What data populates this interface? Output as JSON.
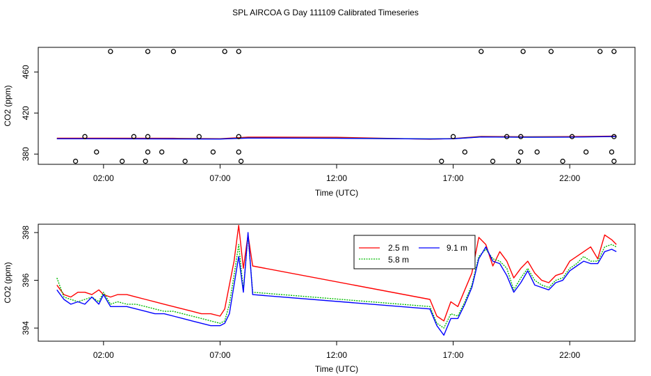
{
  "title": "SPL AIRCOA G  Day 111109  Calibrated Timeseries",
  "chart_data": [
    {
      "type": "line",
      "xlabel": "Time (UTC)",
      "ylabel": "CO2 (ppm)",
      "xlim": [
        -0.8,
        24.8
      ],
      "ylim": [
        370,
        484
      ],
      "xticks": [
        2,
        7,
        12,
        17,
        22
      ],
      "xtick_labels": [
        "02:00",
        "07:00",
        "12:00",
        "17:00",
        "22:00"
      ],
      "yticks": [
        380,
        420,
        460
      ],
      "ytick_labels": [
        "380",
        "420",
        "460"
      ],
      "series": [
        {
          "name": "2.5 m",
          "color": "#ff0000",
          "x": [
            0,
            2,
            5,
            7,
            8.2,
            12,
            16,
            17,
            18.2,
            20,
            22,
            24
          ],
          "y": [
            395.5,
            395.5,
            395.4,
            395,
            396.5,
            396.3,
            394.5,
            395.2,
            397.2,
            396.8,
            397,
            397.5
          ]
        },
        {
          "name": "5.8 m",
          "color": "#00a000",
          "x": [
            0,
            2,
            5,
            7,
            8.2,
            12,
            16,
            17,
            18.2,
            20,
            22,
            24
          ],
          "y": [
            395,
            395,
            394.9,
            394.7,
            395.7,
            395.5,
            394.8,
            395,
            396.8,
            396.5,
            396.6,
            397.2
          ]
        },
        {
          "name": "9.1 m",
          "color": "#0000ff",
          "x": [
            0,
            2,
            5,
            7,
            8.2,
            12,
            16,
            17,
            18.2,
            20,
            22,
            24
          ],
          "y": [
            394.9,
            394.9,
            394.8,
            394.6,
            395.6,
            395.4,
            394.7,
            394.9,
            396.7,
            396.4,
            396.5,
            397.1
          ]
        }
      ],
      "markers": {
        "x": [
          0.8,
          1.2,
          1.7,
          2.3,
          2.8,
          3.3,
          3.8,
          3.9,
          3.9,
          3.9,
          4.5,
          5,
          5.5,
          6.1,
          6.7,
          7.2,
          7.8,
          7.8,
          7.8,
          7.9,
          16.5,
          17,
          17.5,
          18.2,
          18.7,
          19.3,
          19.8,
          19.9,
          19.9,
          20,
          20.6,
          21.2,
          21.7,
          22.1,
          22.7,
          23.3,
          23.8,
          23.9,
          23.9,
          23.9
        ],
        "y": [
          373,
          397,
          382,
          480,
          373,
          397,
          373,
          397,
          382,
          480,
          382,
          480,
          373,
          397,
          382,
          480,
          382,
          397,
          480,
          373,
          373,
          397,
          382,
          480,
          373,
          397,
          373,
          397,
          382,
          480,
          382,
          480,
          373,
          397,
          382,
          480,
          382,
          397,
          480,
          373
        ]
      }
    },
    {
      "type": "line",
      "xlabel": "Time (UTC)",
      "ylabel": "CO2 (ppm)",
      "xlim": [
        -0.8,
        24.8
      ],
      "ylim": [
        393.45,
        398.35
      ],
      "xticks": [
        2,
        7,
        12,
        17,
        22
      ],
      "xtick_labels": [
        "02:00",
        "07:00",
        "12:00",
        "17:00",
        "22:00"
      ],
      "yticks": [
        394,
        396,
        398
      ],
      "ytick_labels": [
        "394",
        "396",
        "398"
      ],
      "legend_position": "top-right",
      "series": [
        {
          "name": "2.5 m",
          "color": "#ff0000",
          "x": [
            0,
            0.3,
            0.6,
            0.9,
            1.2,
            1.5,
            1.8,
            2,
            2.3,
            2.6,
            3,
            3.4,
            3.8,
            4.2,
            4.6,
            5,
            5.4,
            5.8,
            6.2,
            6.6,
            7,
            7.2,
            7.4,
            7.6,
            7.8,
            8,
            8.2,
            8.4,
            16,
            16.3,
            16.6,
            16.9,
            17.2,
            17.5,
            17.8,
            18.1,
            18.4,
            18.7,
            19,
            19.3,
            19.6,
            19.9,
            20.2,
            20.5,
            20.8,
            21.1,
            21.4,
            21.7,
            22,
            22.3,
            22.6,
            22.9,
            23.2,
            23.5,
            23.8,
            24
          ],
          "y": [
            395.8,
            395.4,
            395.3,
            395.5,
            395.5,
            395.4,
            395.6,
            395.4,
            395.3,
            395.4,
            395.4,
            395.3,
            395.2,
            395.1,
            395,
            394.9,
            394.8,
            394.7,
            394.6,
            394.6,
            394.5,
            394.8,
            395.8,
            396.8,
            398.3,
            396.5,
            397.9,
            396.6,
            395.2,
            394.5,
            394.3,
            395.1,
            394.9,
            395.6,
            396.3,
            397.8,
            397.5,
            396.6,
            397.2,
            396.8,
            396.1,
            396.5,
            396.8,
            396.3,
            396.0,
            395.9,
            396.2,
            396.3,
            396.8,
            397.0,
            397.2,
            397.4,
            396.9,
            397.9,
            397.7,
            397.5
          ]
        },
        {
          "name": "5.8 m",
          "color": "#00bb00",
          "x": [
            0,
            0.3,
            0.6,
            0.9,
            1.2,
            1.5,
            1.8,
            2,
            2.3,
            2.6,
            3,
            3.4,
            3.8,
            4.2,
            4.6,
            5,
            5.4,
            5.8,
            6.2,
            6.6,
            7,
            7.2,
            7.4,
            7.6,
            7.8,
            8,
            8.2,
            8.4,
            16,
            16.3,
            16.6,
            16.9,
            17.2,
            17.5,
            17.8,
            18.1,
            18.4,
            18.7,
            19,
            19.3,
            19.6,
            19.9,
            20.2,
            20.5,
            20.8,
            21.1,
            21.4,
            21.7,
            22,
            22.3,
            22.6,
            22.9,
            23.2,
            23.5,
            23.8,
            24
          ],
          "y": [
            396.1,
            395.3,
            395.2,
            395.1,
            395.2,
            395.3,
            395.1,
            395.5,
            395.0,
            395.1,
            395.0,
            395.0,
            394.9,
            394.8,
            394.7,
            394.7,
            394.6,
            394.5,
            394.4,
            394.3,
            394.2,
            394.3,
            395.0,
            396.2,
            397.5,
            395.6,
            397.9,
            395.5,
            394.9,
            394.2,
            394.0,
            394.6,
            394.5,
            395.1,
            395.8,
            397.0,
            397.3,
            396.9,
            396.8,
            396.5,
            395.6,
            396.1,
            396.5,
            396.0,
            395.8,
            395.7,
            396.0,
            396.1,
            396.5,
            396.7,
            397.0,
            396.8,
            396.8,
            397.4,
            397.5,
            397.4
          ]
        },
        {
          "name": "9.1 m",
          "color": "#0000ff",
          "x": [
            0,
            0.3,
            0.6,
            0.9,
            1.2,
            1.5,
            1.8,
            2,
            2.3,
            2.6,
            3,
            3.4,
            3.8,
            4.2,
            4.6,
            5,
            5.4,
            5.8,
            6.2,
            6.6,
            7,
            7.2,
            7.4,
            7.6,
            7.8,
            8,
            8.2,
            8.4,
            16,
            16.3,
            16.6,
            16.9,
            17.2,
            17.5,
            17.8,
            18.1,
            18.4,
            18.7,
            19,
            19.3,
            19.6,
            19.9,
            20.2,
            20.5,
            20.8,
            21.1,
            21.4,
            21.7,
            22,
            22.3,
            22.6,
            22.9,
            23.2,
            23.5,
            23.8,
            24
          ],
          "y": [
            395.6,
            395.2,
            395.0,
            395.1,
            395.0,
            395.3,
            395.0,
            395.4,
            394.9,
            394.9,
            394.9,
            394.8,
            394.7,
            394.6,
            394.6,
            394.5,
            394.4,
            394.3,
            394.2,
            394.1,
            394.1,
            394.2,
            394.6,
            395.8,
            397.0,
            395.5,
            398.0,
            395.4,
            394.8,
            394.1,
            393.7,
            394.4,
            394.4,
            395.0,
            395.7,
            396.9,
            397.4,
            396.8,
            396.7,
            396.2,
            395.5,
            395.9,
            396.4,
            395.8,
            395.7,
            395.6,
            395.9,
            396.0,
            396.4,
            396.6,
            396.8,
            396.7,
            396.7,
            397.2,
            397.3,
            397.2
          ]
        }
      ]
    }
  ]
}
